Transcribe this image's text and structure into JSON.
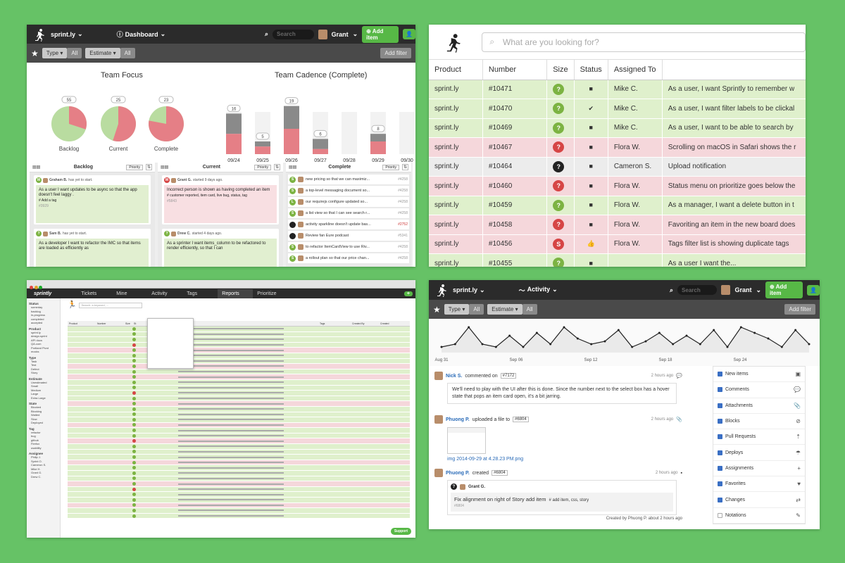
{
  "p1": {
    "app_name": "sprint.ly",
    "view_label": "Dashboard",
    "search_placeholder": "Search",
    "user_name": "Grant",
    "add_item": "Add item",
    "filters": [
      {
        "label": "Type",
        "value": "All"
      },
      {
        "label": "Estimate",
        "value": "All"
      }
    ],
    "add_filter": "Add filter",
    "focus_title": "Team Focus",
    "cadence_title": "Team Cadence (Complete)",
    "pies": [
      {
        "label": "Backlog",
        "count": "55",
        "red": 0.3
      },
      {
        "label": "Current",
        "count": "25",
        "red": 0.55
      },
      {
        "label": "Complete",
        "count": "23",
        "red": 0.78
      }
    ],
    "bars": [
      {
        "date": "09/24",
        "total": 16,
        "red": 8
      },
      {
        "date": "09/25",
        "total": 5,
        "red": 3
      },
      {
        "date": "09/26",
        "total": 19,
        "red": 10
      },
      {
        "date": "09/27",
        "total": 6,
        "red": 2
      },
      {
        "date": "09/28",
        "total": 0,
        "red": 0
      },
      {
        "date": "09/29",
        "total": 8,
        "red": 5
      },
      {
        "date": "09/30",
        "total": 0,
        "red": 0
      }
    ],
    "columns": [
      {
        "title": "Backlog",
        "sort": "Priority"
      },
      {
        "title": "Current",
        "sort": "Priority"
      },
      {
        "title": "Complete",
        "sort": "Priority"
      }
    ],
    "backlog": [
      {
        "who": "Graham B.",
        "status": "has yet to start.",
        "text": "As a user I want updates to be async so that the app doesn't feel laggy .",
        "tag": "# Add a tag",
        "num": "#3929",
        "pts": "4"
      },
      {
        "who": "Sam B.",
        "status": "has yet to start.",
        "text": "As a developer I want to refactor the IMC so that items are loaded as efficiently as"
      }
    ],
    "current": [
      {
        "who": "Grant G.",
        "status": "started 9 days ago.",
        "text": "Incorrect person is shown as having completed an item",
        "tag": "# customer reported, item card, live bug, status, tag",
        "num": "#5843",
        "pts": "4"
      },
      {
        "who": "Drew C.",
        "status": "started 4 days ago.",
        "text": "As a sprinter I want items_column to be refactored to render efficiently, so that I can"
      }
    ],
    "complete": [
      {
        "text": "new pricing so that we can maximiz...",
        "num": "#4258"
      },
      {
        "text": "a top-level messaging document so...",
        "num": "#4258"
      },
      {
        "text": "our requirejs configure updated so...",
        "num": "#4258"
      },
      {
        "text": "a list view so that I can see search r...",
        "num": "#4258"
      },
      {
        "text": "activity sparkline doesn't update bas...",
        "num": "#2752"
      },
      {
        "text": "Review fan Eure podcast",
        "num": "#5341"
      },
      {
        "text": "to refactor ItemCardView to use Riv...",
        "num": "#4258"
      },
      {
        "text": "a rollout plan so that our price chan...",
        "num": "#4258"
      }
    ]
  },
  "p2": {
    "search_placeholder": "What are you looking for?",
    "headers": [
      "Product",
      "Number",
      "Size",
      "Status",
      "Assigned To",
      ""
    ],
    "rows": [
      {
        "product": "sprint.ly",
        "number": "#10471",
        "size": "?",
        "status": "folder",
        "assigned": "Mike C.",
        "title": "As a user, I want Sprintly to remember w",
        "color": "g"
      },
      {
        "product": "sprint.ly",
        "number": "#10470",
        "size": "?",
        "status": "check",
        "assigned": "Mike C.",
        "title": "As a user, I want filter labels to be clickal",
        "color": "g"
      },
      {
        "product": "sprint.ly",
        "number": "#10469",
        "size": "?",
        "status": "folder",
        "assigned": "Mike C.",
        "title": "As a user, I want to be able to search by",
        "color": "g"
      },
      {
        "product": "sprint.ly",
        "number": "#10467",
        "size": "?",
        "status": "folder",
        "assigned": "Flora W.",
        "title": "Scrolling on macOS in Safari shows the r",
        "color": "r"
      },
      {
        "product": "sprint.ly",
        "number": "#10464",
        "size": "?",
        "status": "folder",
        "assigned": "Cameron S.",
        "title": "Upload notification",
        "color": "k"
      },
      {
        "product": "sprint.ly",
        "number": "#10460",
        "size": "?",
        "status": "folder",
        "assigned": "Flora W.",
        "title": "Status menu on prioritize goes below the",
        "color": "r"
      },
      {
        "product": "sprint.ly",
        "number": "#10459",
        "size": "?",
        "status": "folder",
        "assigned": "Flora W.",
        "title": "As a manager, I want a delete button in t",
        "color": "g"
      },
      {
        "product": "sprint.ly",
        "number": "#10458",
        "size": "?",
        "status": "folder",
        "assigned": "Flora W.",
        "title": "Favoriting an item in the new board does",
        "color": "r"
      },
      {
        "product": "sprint.ly",
        "number": "#10456",
        "size": "S",
        "status": "thumb",
        "assigned": "Flora W.",
        "title": "Tags filter list is showing duplicate tags",
        "color": "r"
      },
      {
        "product": "sprint.ly",
        "number": "#10455",
        "size": "?",
        "status": "folder",
        "assigned": "",
        "title": "As a user I want the...",
        "color": "g"
      }
    ]
  },
  "p3": {
    "brand": "sprintly",
    "nav": [
      "Tickets",
      "Mine",
      "Activity",
      "Tags",
      "Reports",
      "Prioritize"
    ],
    "search_placeholder": "Search: a keyword, ...",
    "support": "Support",
    "sidebar": [
      {
        "head": "Status",
        "items": [
          "someday",
          "backlog",
          "in-progress",
          "completed",
          "accepted"
        ]
      },
      {
        "head": "Product",
        "items": [
          "sprint.ly",
          "design.sprint",
          "API docs",
          "QA.com",
          "Portland Pivot",
          "mocks"
        ]
      },
      {
        "head": "Type",
        "items": [
          "Task",
          "Test",
          "Defect",
          "Story"
        ]
      },
      {
        "head": "Estimate",
        "items": [
          "Unestimated",
          "Small",
          "Medium",
          "Large",
          "Extra Large"
        ]
      },
      {
        "head": "State",
        "items": [
          "Blocked",
          "Blocking",
          "Waited",
          "Slow",
          "Deployed"
        ]
      },
      {
        "head": "Tag",
        "items": [
          "refactor",
          "bug",
          "github",
          "Firefox",
          "usability"
        ]
      },
      {
        "head": "Assignee",
        "items": [
          "Philip J.",
          "Sprint O.",
          "Cameron S.",
          "Mike H.",
          "Grant G.",
          "Drew C."
        ]
      }
    ],
    "columns": [
      "Product",
      "Number",
      "Size",
      "St",
      "",
      "Title",
      "Tags",
      "Created By",
      "Created"
    ],
    "rows": 20
  },
  "p4": {
    "app_name": "sprint.ly",
    "view_label": "Activity",
    "search_placeholder": "Search",
    "user_name": "Grant",
    "add_item": "Add item",
    "filters": [
      {
        "label": "Type",
        "value": "All"
      },
      {
        "label": "Estimate",
        "value": "All"
      }
    ],
    "add_filter": "Add filter",
    "spark": [
      2,
      3,
      9,
      3,
      2,
      6,
      2,
      7,
      3,
      9,
      5,
      3,
      4,
      8,
      2,
      4,
      7,
      3,
      6,
      3,
      8,
      2,
      9,
      7,
      5,
      2,
      8,
      3
    ],
    "spark_dates": [
      "Aug 31",
      "Sep 06",
      "Sep 12",
      "Sep 18",
      "Sep 24"
    ],
    "feed": [
      {
        "who": "Nick S.",
        "action": "commented on",
        "ref": "#7172",
        "time": "2 hours ago",
        "body": "We'll need to play with the UI after this is done. Since the number next to the select box has a hover state that pops an item card open, it's a bit jarring."
      },
      {
        "who": "Phuong P.",
        "action": "uploaded a file to",
        "ref": "#6804",
        "time": "2 hours ago",
        "file": "img 2014-09-29 at 4.28.23 PM.png"
      },
      {
        "who": "Phuong P.",
        "action": "created",
        "ref": "#6804",
        "time": "2 hours ago",
        "assignee": "Grant G.",
        "item_title": "Fix alignment on right of Story add item",
        "item_tags": "# add item, css, story",
        "item_num": "#6804",
        "footer": "Created by Phuong P. about 2 hours ago"
      }
    ],
    "toggles": [
      {
        "label": "New items",
        "on": true,
        "icon": "new-item-icon"
      },
      {
        "label": "Comments",
        "on": true,
        "icon": "comment-icon"
      },
      {
        "label": "Attachments",
        "on": true,
        "icon": "paperclip-icon"
      },
      {
        "label": "Blocks",
        "on": true,
        "icon": "block-icon"
      },
      {
        "label": "Pull Requests",
        "on": true,
        "icon": "pull-request-icon"
      },
      {
        "label": "Deploys",
        "on": true,
        "icon": "deploy-icon"
      },
      {
        "label": "Assignments",
        "on": true,
        "icon": "assign-icon"
      },
      {
        "label": "Favorites",
        "on": true,
        "icon": "heart-icon"
      },
      {
        "label": "Changes",
        "on": true,
        "icon": "changes-icon"
      },
      {
        "label": "Notations",
        "on": false,
        "icon": "notation-icon"
      }
    ]
  }
}
